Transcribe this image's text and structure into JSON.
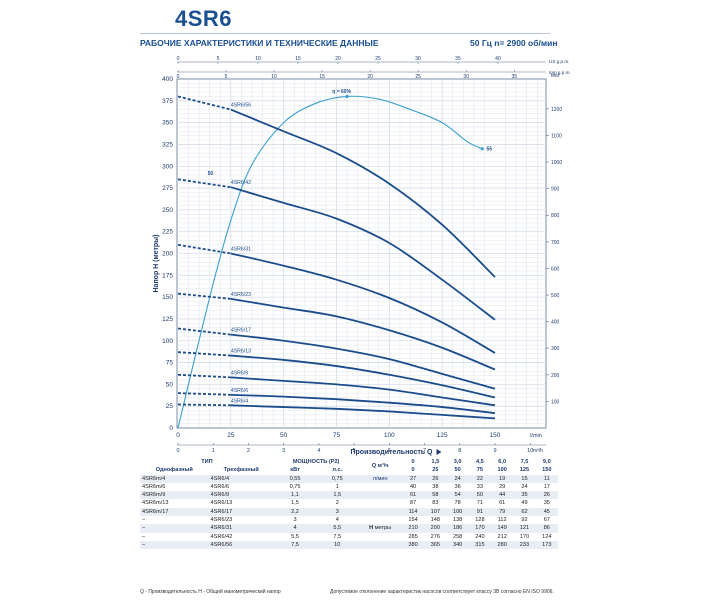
{
  "title": "4SR6",
  "subtitle": "РАБОЧИЕ ХАРАКТЕРИСТИКИ И ТЕХНИЧЕСКИЕ ДАННЫЕ",
  "frequency": "50 Гц   n= 2900 об/мин",
  "colors": {
    "curve": "#1b4c8c",
    "efficiency": "#3b9fd0",
    "grid": "#d6dde8",
    "accent": "#1a4f93"
  },
  "chart_data": {
    "type": "line",
    "xlabel": "Производительность Q",
    "ylabel": "Напор Н (метры)",
    "x_unit": "l/min",
    "y_unit_right": "feet",
    "top_axis_units": [
      "US g.p.m.",
      "Imp g.p.m."
    ],
    "bottom_axis_unit2": "m³/h",
    "xlim": [
      0,
      150
    ],
    "ylim": [
      0,
      400
    ],
    "x_ticks": [
      0,
      25,
      50,
      75,
      100,
      125,
      150
    ],
    "y_ticks": [
      0,
      25,
      50,
      75,
      100,
      125,
      150,
      175,
      200,
      225,
      250,
      275,
      300,
      325,
      350,
      375,
      400
    ],
    "feet_ticks": [
      100,
      200,
      300,
      400,
      500,
      600,
      700,
      800,
      900,
      1000,
      1100,
      1200
    ],
    "us_gpm_ticks": [
      0,
      5,
      10,
      15,
      20,
      25,
      30,
      35,
      40
    ],
    "imp_gpm_ticks": [
      0,
      5,
      10,
      15,
      20,
      25,
      30,
      35
    ],
    "m3h_ticks": [
      0,
      1,
      2,
      3,
      4,
      5,
      6,
      7,
      8,
      9,
      10
    ],
    "x": [
      25,
      50,
      75,
      100,
      125,
      150
    ],
    "series": [
      {
        "name": "4SR6/4",
        "start": 27,
        "values": [
          26,
          24,
          22,
          19,
          15,
          11
        ]
      },
      {
        "name": "4SR6/6",
        "start": 40,
        "values": [
          38,
          36,
          33,
          29,
          24,
          17
        ]
      },
      {
        "name": "4SR6/9",
        "start": 61,
        "values": [
          58,
          54,
          50,
          44,
          35,
          26
        ]
      },
      {
        "name": "4SR6/13",
        "start": 87,
        "values": [
          83,
          78,
          71,
          61,
          49,
          35
        ]
      },
      {
        "name": "4SR6/17",
        "start": 114,
        "values": [
          107,
          100,
          91,
          79,
          62,
          45
        ]
      },
      {
        "name": "4SR6/23",
        "start": 154,
        "values": [
          148,
          138,
          128,
          112,
          92,
          67
        ]
      },
      {
        "name": "4SR6/31",
        "start": 210,
        "values": [
          200,
          186,
          170,
          149,
          121,
          86
        ]
      },
      {
        "name": "4SR6/42",
        "start": 285,
        "values": [
          276,
          258,
          240,
          212,
          170,
          124
        ]
      },
      {
        "name": "4SR6/56",
        "start": 380,
        "values": [
          365,
          340,
          315,
          280,
          233,
          173
        ]
      }
    ],
    "efficiency": {
      "points": [
        [
          0,
          0
        ],
        [
          15,
          150
        ],
        [
          25,
          238
        ],
        [
          35,
          302
        ],
        [
          50,
          350
        ],
        [
          65,
          372
        ],
        [
          80,
          380
        ],
        [
          95,
          377
        ],
        [
          110,
          365
        ],
        [
          125,
          350
        ],
        [
          137,
          328
        ],
        [
          144,
          320
        ]
      ],
      "labels": [
        "50",
        "η = 60%",
        "55"
      ]
    }
  },
  "table": {
    "col_type": "ТИП",
    "col_power": "МОЩНОСТЬ (P2)",
    "sub_single": "Однофазный",
    "sub_three": "Трехфазный",
    "sub_kw": "кВт",
    "sub_hp": "л.с.",
    "q_label": "Q",
    "q_unit1": "м³/ч",
    "q_unit2": "л/мин",
    "h_label": "H",
    "h_unit": "метры",
    "q_m3h": [
      "0",
      "1,5",
      "3,0",
      "4,5",
      "6,0",
      "7,5",
      "9,0"
    ],
    "q_lmin": [
      "0",
      "25",
      "50",
      "75",
      "100",
      "125",
      "150"
    ],
    "rows": [
      {
        "single": "4SR6m/4",
        "three": "4SR6/4",
        "kw": "0,55",
        "hp": "0,75",
        "h": [
          "27",
          "26",
          "24",
          "22",
          "19",
          "15",
          "11"
        ]
      },
      {
        "single": "4SR6m/6",
        "three": "4SR6/6",
        "kw": "0,75",
        "hp": "1",
        "h": [
          "40",
          "38",
          "36",
          "33",
          "29",
          "24",
          "17"
        ]
      },
      {
        "single": "4SR6m/9",
        "three": "4SR6/9",
        "kw": "1,1",
        "hp": "1,5",
        "h": [
          "61",
          "58",
          "54",
          "50",
          "44",
          "35",
          "26"
        ]
      },
      {
        "single": "4SR6m/13",
        "three": "4SR6/13",
        "kw": "1,5",
        "hp": "2",
        "h": [
          "87",
          "83",
          "78",
          "71",
          "61",
          "49",
          "35"
        ]
      },
      {
        "single": "4SR6m/17",
        "three": "4SR6/17",
        "kw": "2,2",
        "hp": "3",
        "h": [
          "114",
          "107",
          "100",
          "91",
          "79",
          "62",
          "45"
        ]
      },
      {
        "single": "–",
        "three": "4SR6/23",
        "kw": "3",
        "hp": "4",
        "h": [
          "154",
          "148",
          "138",
          "128",
          "112",
          "92",
          "67"
        ]
      },
      {
        "single": "–",
        "three": "4SR6/31",
        "kw": "4",
        "hp": "5,5",
        "h": [
          "210",
          "200",
          "186",
          "170",
          "149",
          "121",
          "86"
        ]
      },
      {
        "single": "–",
        "three": "4SR6/42",
        "kw": "5,5",
        "hp": "7,5",
        "h": [
          "285",
          "276",
          "258",
          "240",
          "212",
          "170",
          "124"
        ]
      },
      {
        "single": "–",
        "three": "4SR6/56",
        "kw": "7,5",
        "hp": "10",
        "h": [
          "380",
          "365",
          "340",
          "315",
          "280",
          "233",
          "173"
        ]
      }
    ]
  },
  "footer": {
    "legend": "Q - Производительность   H - Общий манометрический напор",
    "tolerance": "Допустимое отклонение характеристик насосов соответствует классу 3В согласно EN ISO 9906."
  }
}
